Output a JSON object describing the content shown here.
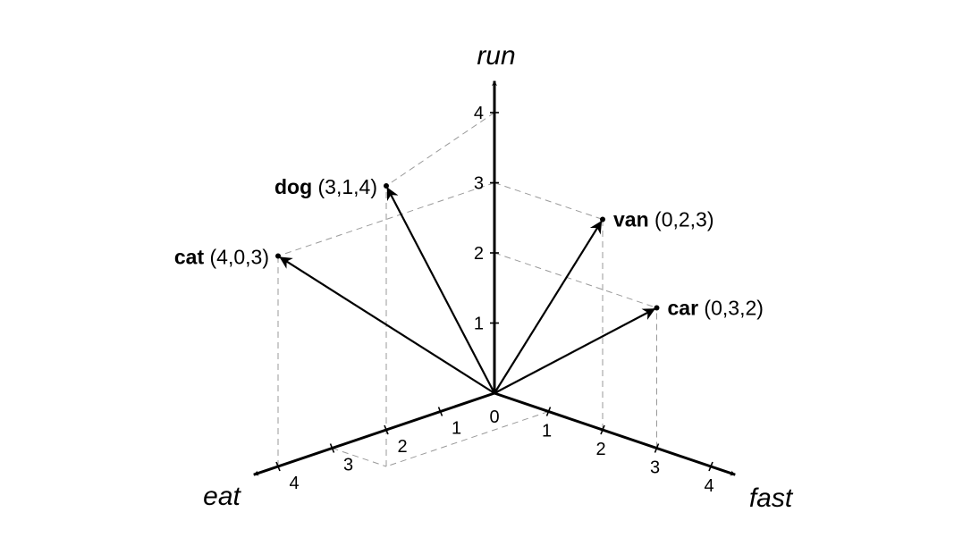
{
  "axes": {
    "eat": {
      "label": "eat"
    },
    "fast": {
      "label": "fast"
    },
    "run": {
      "label": "run"
    }
  },
  "origin_label": "0",
  "ticks": {
    "eat": [
      "1",
      "2",
      "3",
      "4"
    ],
    "fast": [
      "1",
      "2",
      "3",
      "4"
    ],
    "run": [
      "1",
      "2",
      "3",
      "4"
    ]
  },
  "points": [
    {
      "name": "dog",
      "coords": "(3,1,4)",
      "eat": 3,
      "fast": 1,
      "run": 4
    },
    {
      "name": "cat",
      "coords": "(4,0,3)",
      "eat": 4,
      "fast": 0,
      "run": 3
    },
    {
      "name": "van",
      "coords": "(0,2,3)",
      "eat": 0,
      "fast": 2,
      "run": 3
    },
    {
      "name": "car",
      "coords": "(0,3,2)",
      "eat": 0,
      "fast": 3,
      "run": 2
    }
  ]
}
